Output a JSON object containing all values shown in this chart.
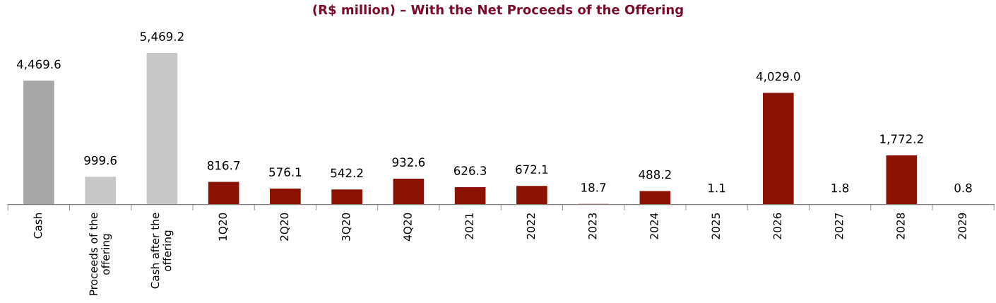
{
  "chart_data": {
    "type": "bar",
    "title": "(R$ million) – With the Net Proceeds of the Offering",
    "categories": [
      "Cash",
      "Proceeds of the\noffering",
      "Cash after the\noffering",
      "1Q20",
      "2Q20",
      "3Q20",
      "4Q20",
      "2021",
      "2022",
      "2023",
      "2024",
      "2025",
      "2026",
      "2027",
      "2028",
      "2029"
    ],
    "values": [
      4469.6,
      999.6,
      5469.2,
      816.7,
      576.1,
      542.2,
      932.6,
      626.3,
      672.1,
      18.7,
      488.2,
      1.1,
      4029.0,
      1.8,
      1772.2,
      0.8
    ],
    "value_labels": [
      "4,469.6",
      "999.6",
      "5,469.2",
      "816.7",
      "576.1",
      "542.2",
      "932.6",
      "626.3",
      "672.1",
      "18.7",
      "488.2",
      "1.1",
      "4,029.0",
      "1.8",
      "1,772.2",
      "0.8"
    ],
    "colors": [
      "#a6a6a6",
      "#c8c8c8",
      "#c8c8c8",
      "#8b1100",
      "#8b1100",
      "#8b1100",
      "#8b1100",
      "#8b1100",
      "#8b1100",
      "#8b1100",
      "#8b1100",
      "#8b1100",
      "#8b1100",
      "#8b1100",
      "#8b1100",
      "#8b1100"
    ],
    "grid": false,
    "legend": false
  }
}
